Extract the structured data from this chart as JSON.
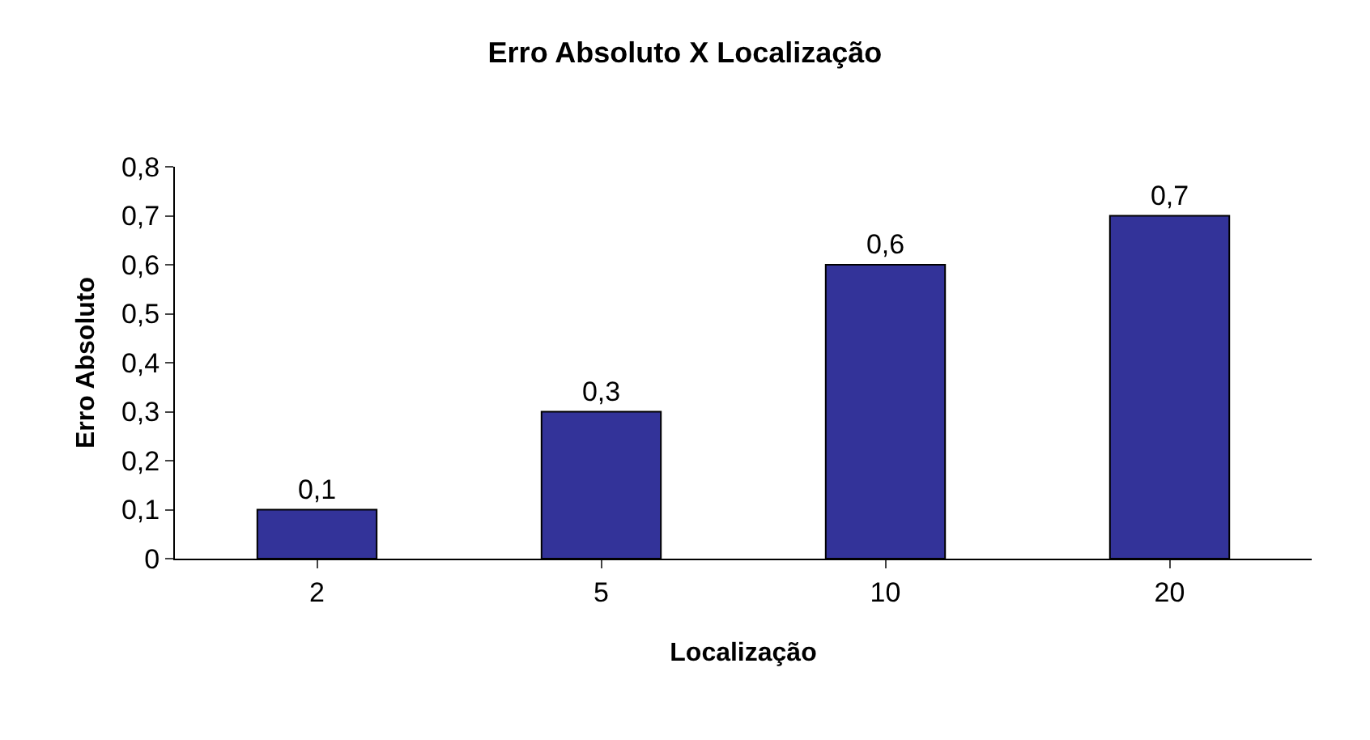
{
  "chart_data": {
    "type": "bar",
    "title": "Erro Absoluto X Localização",
    "xlabel": "Localização",
    "ylabel": "Erro Absoluto",
    "categories": [
      "2",
      "5",
      "10",
      "20"
    ],
    "series": [
      {
        "color": "#333399",
        "values": [
          0.1,
          0.3,
          0.6,
          0.7
        ],
        "value_labels": [
          "0,1",
          "0,3",
          "0,6",
          "0,7"
        ]
      }
    ],
    "ylim": [
      0,
      0.8
    ],
    "yticks": [
      0,
      {
        "value": 0.1,
        "label": "0,1"
      },
      {
        "value": 0.2,
        "label": "0,2"
      },
      {
        "value": 0.3,
        "label": "0,3"
      },
      {
        "value": 0.4,
        "label": "0,4"
      },
      {
        "value": 0.5,
        "label": "0,5"
      },
      {
        "value": 0.6,
        "label": "0,6"
      },
      {
        "value": 0.7,
        "label": "0,7"
      },
      {
        "value": 0.8,
        "label": "0,8"
      }
    ],
    "grid": false
  }
}
